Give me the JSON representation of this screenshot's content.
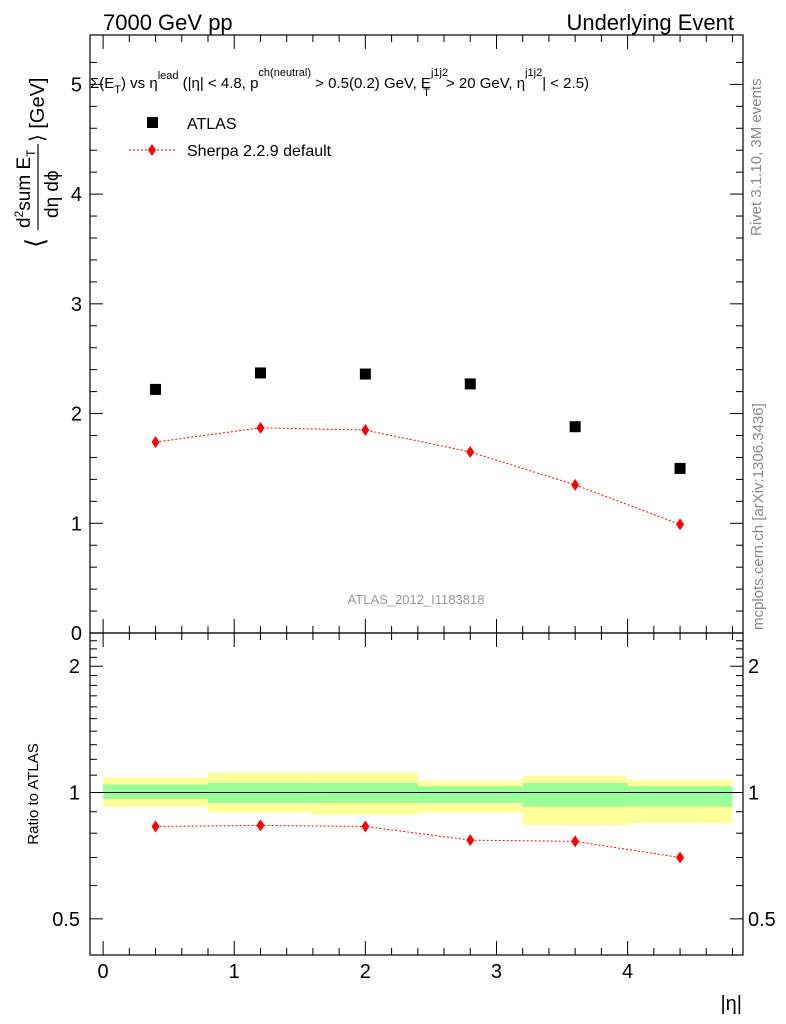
{
  "header": {
    "left": "7000 GeV pp",
    "right": "Underlying Event"
  },
  "main_plot": {
    "title_parts": {
      "sigma": "Σ(E",
      "t1": "T",
      "vs": ") vs η",
      "lead": "lead",
      "cond1": " (|η| < 4.8, p",
      "chneutral": "ch(neutral)",
      "cond2": " > 0.5(0.2) GeV, E",
      "j1j2a": "j1j2",
      "t2": "T",
      "cond3": " > 20 GeV, η",
      "j1j2b": "j1j2",
      "cond4": "| < 2.5)"
    },
    "ylabel_parts": {
      "open": "⟨",
      "num": "d",
      "sup2": "2",
      "sum": "sum E",
      "sub_t": "T",
      "den": "dη dϕ",
      "close": "⟩ [GeV]"
    },
    "watermark": "ATLAS_2012_I1183818"
  },
  "ratio_plot": {
    "ylabel": "Ratio to ATLAS"
  },
  "xaxis": {
    "label": "|η|"
  },
  "side_labels": {
    "top": "Rivet 3.1.10,  3M events",
    "bottom": "mcplots.cern.ch [arXiv:1306.3436]"
  },
  "legend": {
    "data_label": "ATLAS",
    "mc_label": "Sherpa 2.2.9 default"
  },
  "colors": {
    "data": "#000000",
    "mc": "#ff0000",
    "band_inner": "#99ff99",
    "band_outer": "#ffff99",
    "text_side": "#888888"
  },
  "chart_data": [
    {
      "type": "scatter",
      "panel": "main",
      "xlim": [
        -0.1,
        4.88
      ],
      "ylim": [
        0,
        5.45
      ],
      "y_ticks": [
        0,
        1,
        2,
        3,
        4,
        5
      ],
      "x_ticks": [
        0,
        1,
        2,
        3,
        4
      ],
      "series": [
        {
          "name": "ATLAS",
          "marker": "square",
          "x": [
            0.4,
            1.2,
            2.0,
            2.8,
            3.6,
            4.4
          ],
          "y": [
            2.22,
            2.37,
            2.36,
            2.27,
            1.88,
            1.5
          ],
          "bin_edges": [
            0,
            0.8,
            1.6,
            2.4,
            3.2,
            4.0,
            4.8
          ]
        },
        {
          "name": "Sherpa 2.2.9 default",
          "marker": "diamond",
          "line": "dotted",
          "x": [
            0.4,
            1.2,
            2.0,
            2.8,
            3.6,
            4.4
          ],
          "y": [
            1.74,
            1.87,
            1.85,
            1.65,
            1.35,
            0.99
          ]
        }
      ]
    },
    {
      "type": "line",
      "panel": "ratio",
      "scale": "log",
      "xlim": [
        -0.1,
        4.88
      ],
      "ylim": [
        0.41,
        2.4
      ],
      "y_ticks": [
        0.5,
        1,
        2
      ],
      "x_ticks": [
        0,
        1,
        2,
        3,
        4
      ],
      "bands": {
        "bin_edges": [
          0,
          0.8,
          1.6,
          2.4,
          3.2,
          4.0,
          4.8
        ],
        "inner_low": [
          0.965,
          0.945,
          0.945,
          0.945,
          0.925,
          0.925
        ],
        "inner_high": [
          1.045,
          1.055,
          1.055,
          1.035,
          1.055,
          1.035
        ],
        "outer_low": [
          0.925,
          0.895,
          0.885,
          0.895,
          0.835,
          0.845
        ],
        "outer_high": [
          1.085,
          1.115,
          1.115,
          1.065,
          1.095,
          1.07
        ]
      },
      "series": [
        {
          "name": "Sherpa 2.2.9 default",
          "marker": "diamond",
          "line": "dotted",
          "x": [
            0.4,
            1.2,
            2.0,
            2.8,
            3.6,
            4.4
          ],
          "y": [
            0.83,
            0.835,
            0.83,
            0.77,
            0.765,
            0.7
          ]
        }
      ]
    }
  ]
}
